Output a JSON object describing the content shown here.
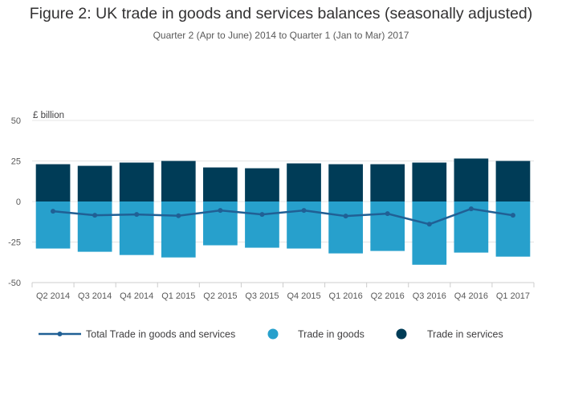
{
  "header": {
    "title": "Figure 2: UK trade in goods and services balances (seasonally adjusted)",
    "subtitle": "Quarter 2 (Apr to June) 2014 to Quarter 1 (Jan to Mar) 2017"
  },
  "chart_data": {
    "type": "bar",
    "title": "Figure 2: UK trade in goods and services balances (seasonally adjusted)",
    "subtitle": "Quarter 2 (Apr to June) 2014 to Quarter 1 (Jan to Mar) 2017",
    "ylabel": "£ billion",
    "xlabel": "",
    "ylim": [
      -50,
      50
    ],
    "yticks": [
      50,
      25,
      0,
      -25,
      -50
    ],
    "grid": true,
    "legend_position": "bottom",
    "categories": [
      "Q2 2014",
      "Q3 2014",
      "Q4 2014",
      "Q1 2015",
      "Q2 2015",
      "Q3 2015",
      "Q4 2015",
      "Q1 2016",
      "Q2 2016",
      "Q3 2016",
      "Q4 2016",
      "Q1 2017"
    ],
    "series": [
      {
        "name": "Total Trade in goods and services",
        "type": "line",
        "color": "#206095",
        "values": [
          -6,
          -8.5,
          -8,
          -8.8,
          -5.5,
          -8,
          -5.5,
          -9,
          -7.5,
          -14,
          -4.5,
          -8.5
        ]
      },
      {
        "name": "Trade in goods",
        "type": "bar",
        "color": "#27a0cc",
        "values": [
          -29,
          -31,
          -33,
          -34.5,
          -27,
          -28.5,
          -29,
          -32,
          -30.5,
          -39,
          -31.5,
          -34
        ]
      },
      {
        "name": "Trade in services",
        "type": "bar",
        "color": "#003c57",
        "values": [
          23,
          22,
          24,
          25,
          21,
          20.5,
          23.5,
          23,
          23,
          24,
          26.5,
          25
        ]
      }
    ]
  }
}
